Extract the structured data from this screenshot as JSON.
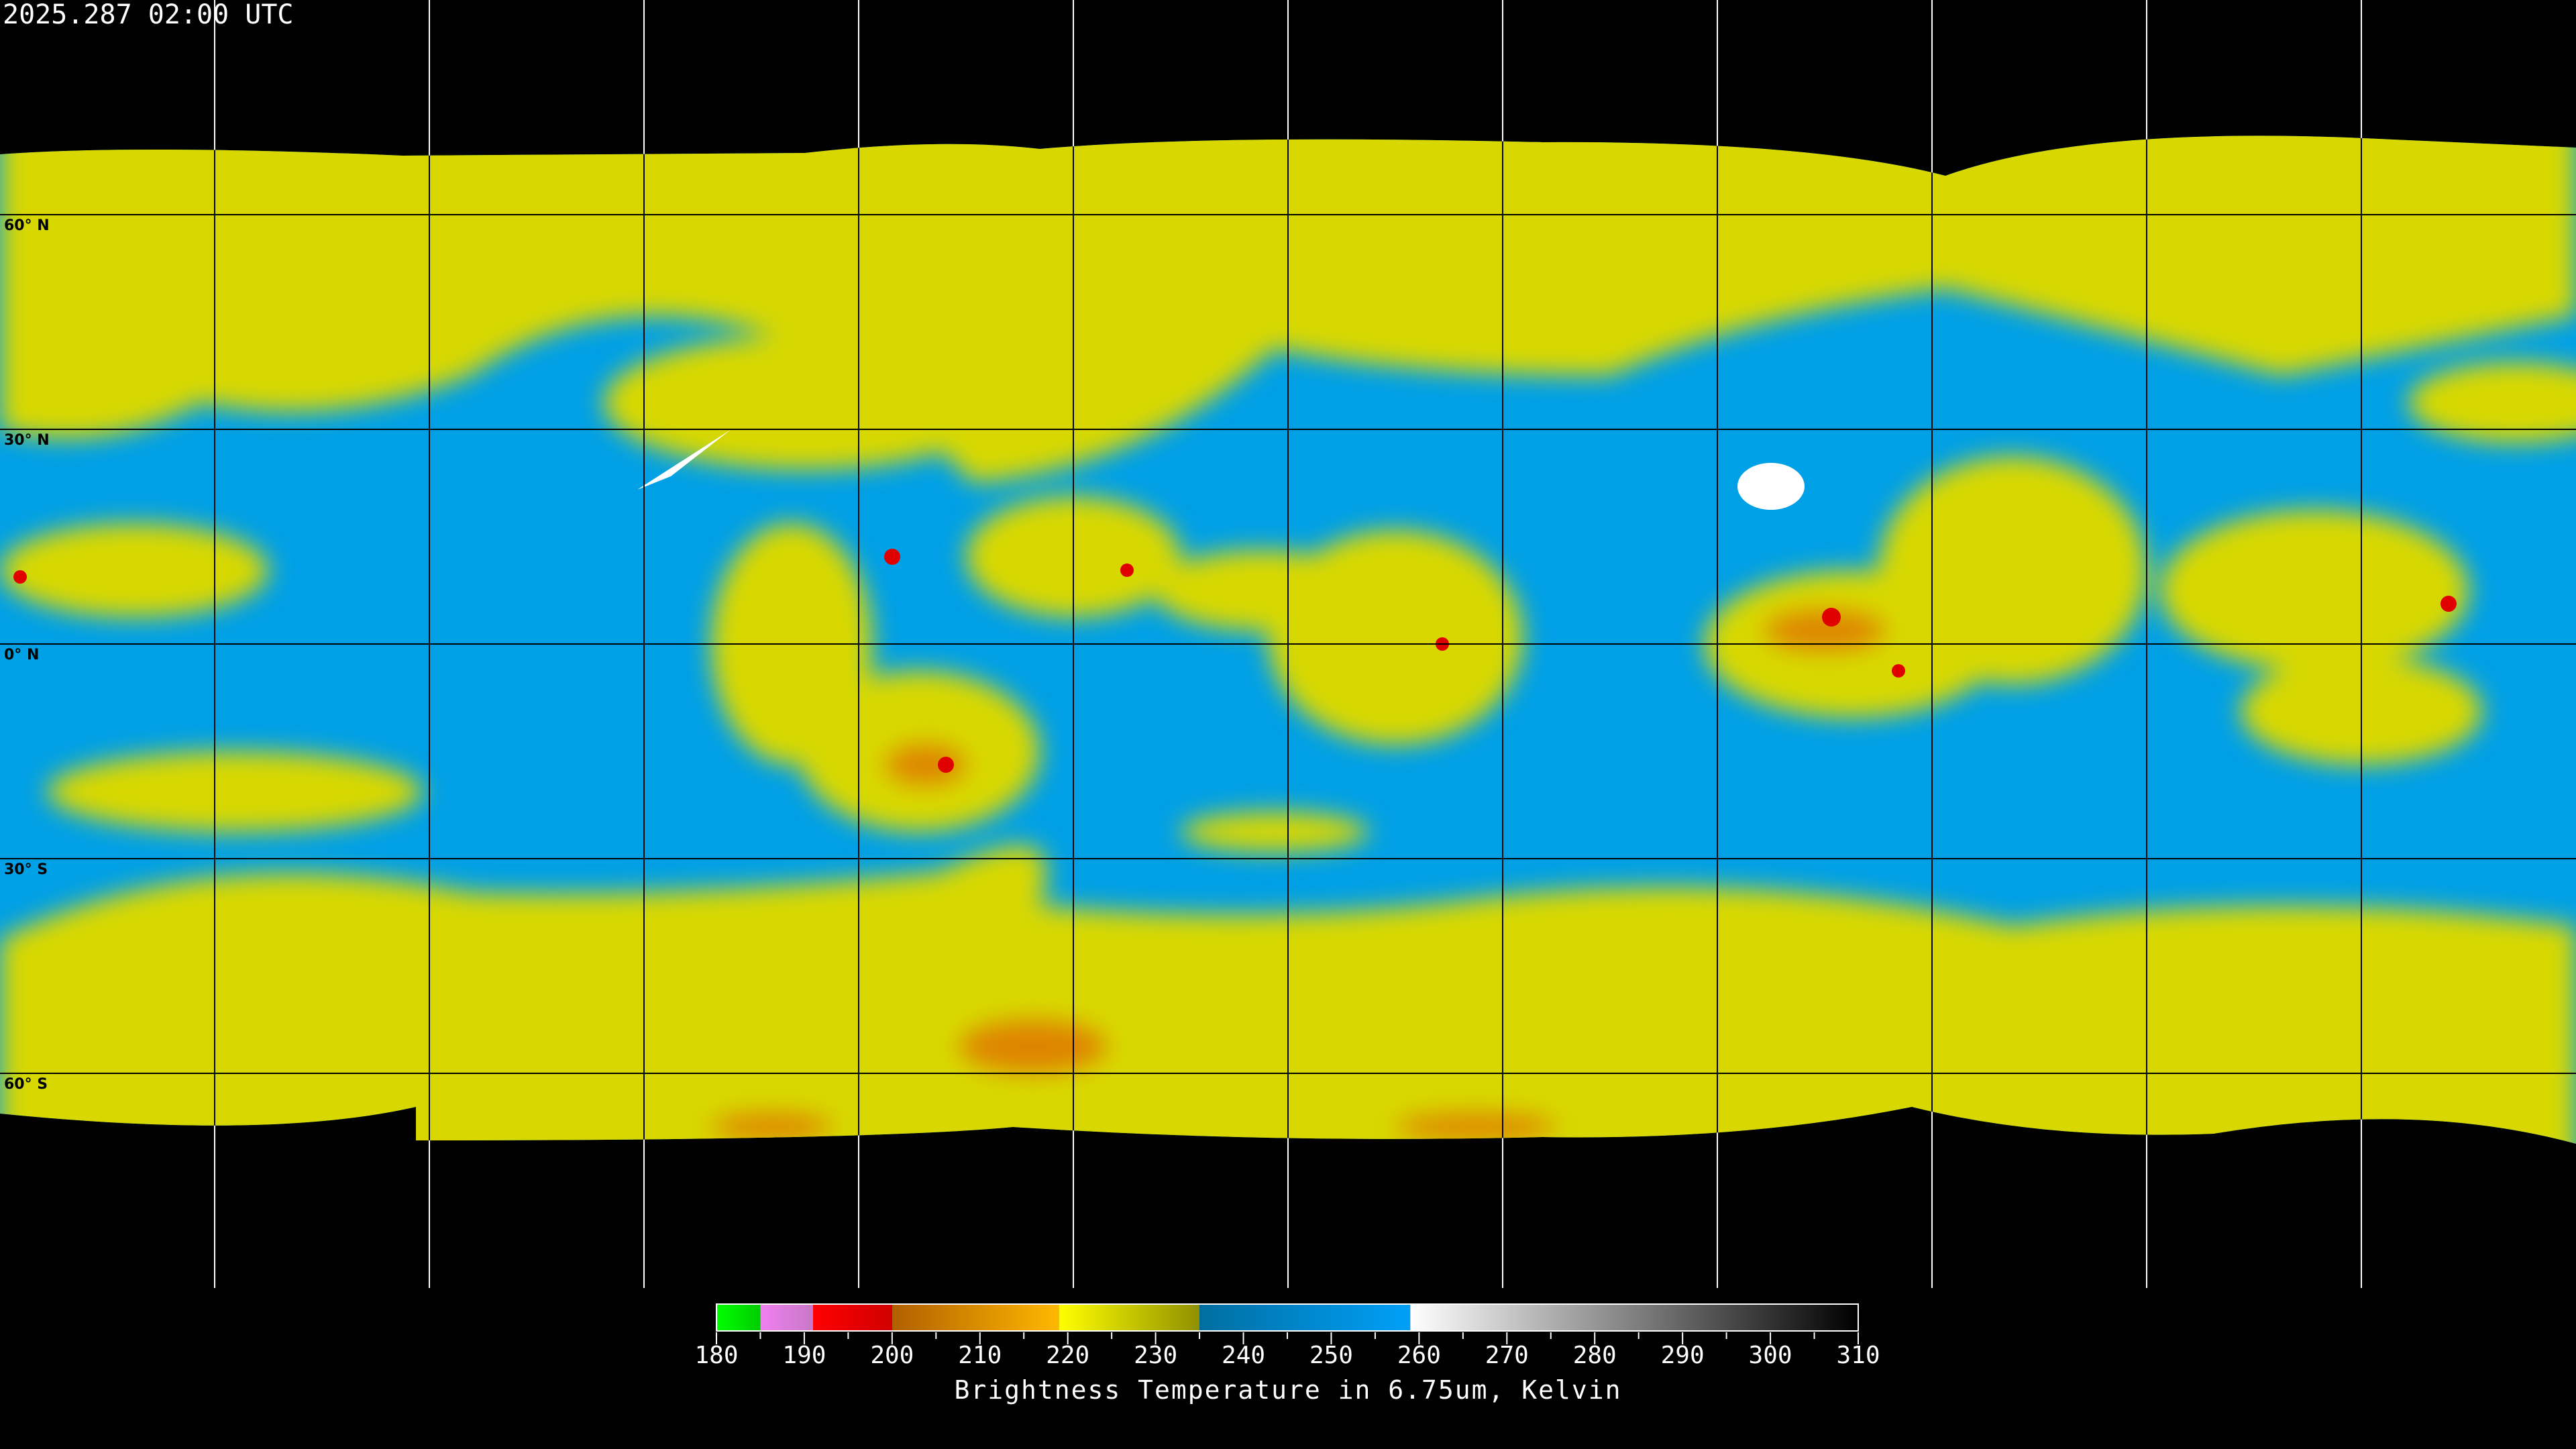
{
  "title": "2025.287 02:00 UTC",
  "map": {
    "projection": "equirectangular",
    "grid_spacing_deg": 30,
    "lat_labels": [
      "60° N",
      "30° N",
      "0° N",
      "30° S",
      "60° S"
    ],
    "colors": {
      "dry": "#009be6",
      "moist": "#e6e600",
      "cold": "#e60000",
      "background": "#000000"
    }
  },
  "colorbar": {
    "min": 180,
    "max": 310,
    "tick_step": 5,
    "tick_labels": [
      "180",
      "190",
      "200",
      "210",
      "220",
      "230",
      "240",
      "250",
      "260",
      "270",
      "280",
      "290",
      "300",
      "310"
    ],
    "caption": "Brightness Temperature in 6.75um, Kelvin",
    "segments": [
      {
        "from": 180,
        "to": 185,
        "c1": "#00ff00",
        "c2": "#00cc00"
      },
      {
        "from": 185,
        "to": 191,
        "c1": "#f080f0",
        "c2": "#c878c8"
      },
      {
        "from": 191,
        "to": 200,
        "c1": "#ff0000",
        "c2": "#d00000"
      },
      {
        "from": 200,
        "to": 219,
        "c1": "#b06000",
        "c2": "#ffb800"
      },
      {
        "from": 219,
        "to": 235,
        "c1": "#ffff00",
        "c2": "#909000"
      },
      {
        "from": 235,
        "to": 259,
        "c1": "#006ea0",
        "c2": "#00a0f8"
      },
      {
        "from": 259,
        "to": 310,
        "c1": "#ffffff",
        "c2": "#000000"
      }
    ]
  }
}
